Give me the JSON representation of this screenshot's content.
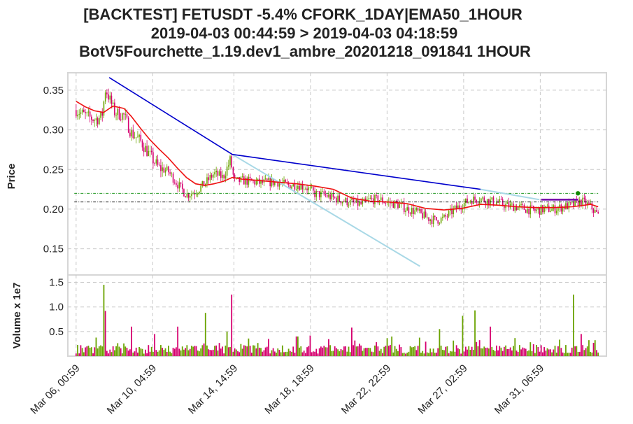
{
  "title": {
    "line1": "[BACKTEST] FETUSDT -5.4% CFORK_1DAY|EMA50_1HOUR",
    "line2": "2019-04-03 00:44:59 > 2019-04-03 04:18:59",
    "line3": "BotV5Fourchette_1.19.dev1_ambre_20201218_091841 1HOUR"
  },
  "colors": {
    "up": "#6aa300",
    "down": "#d6006f",
    "ema": "#ee1111",
    "fork_main": "#0000cc",
    "fork_light": "#a8d8e6",
    "level_upper": "#008800",
    "level_lower": "#000000",
    "target": "#7700aa",
    "marker": "#118800"
  },
  "chart_data": {
    "type": "candlestick",
    "x_unit": "days since Mar 06, 00:59",
    "x_ticks": [
      {
        "x": 0,
        "label": "Mar 06, 00:59"
      },
      {
        "x": 4.1667,
        "label": "Mar 10, 04:59"
      },
      {
        "x": 8.5833,
        "label": "Mar 14, 14:59"
      },
      {
        "x": 12.75,
        "label": "Mar 18, 18:59"
      },
      {
        "x": 16.9167,
        "label": "Mar 22, 22:59"
      },
      {
        "x": 21.0833,
        "label": "Mar 27, 02:59"
      },
      {
        "x": 25.25,
        "label": "Mar 31, 06:59"
      }
    ],
    "xlim": [
      -0.45,
      28.85
    ],
    "price_panel": {
      "ylabel": "Price",
      "ylim": [
        0.117,
        0.372
      ],
      "yticks": [
        0.15,
        0.2,
        0.25,
        0.3,
        0.35
      ],
      "ytick_labels": [
        "0.15",
        "0.20",
        "0.25",
        "0.30",
        "0.35"
      ],
      "price_path": [
        [
          0,
          0.325
        ],
        [
          0.5,
          0.318
        ],
        [
          1,
          0.313
        ],
        [
          1.4,
          0.316
        ],
        [
          1.6,
          0.352
        ],
        [
          1.8,
          0.34
        ],
        [
          2.1,
          0.322
        ],
        [
          2.6,
          0.318
        ],
        [
          3,
          0.296
        ],
        [
          3.5,
          0.286
        ],
        [
          4,
          0.268
        ],
        [
          4.5,
          0.252
        ],
        [
          5,
          0.248
        ],
        [
          5.5,
          0.232
        ],
        [
          6,
          0.218
        ],
        [
          6.5,
          0.222
        ],
        [
          7,
          0.232
        ],
        [
          7.5,
          0.245
        ],
        [
          8,
          0.24
        ],
        [
          8.4,
          0.262
        ],
        [
          8.6,
          0.235
        ],
        [
          9,
          0.236
        ],
        [
          9.5,
          0.235
        ],
        [
          10,
          0.233
        ],
        [
          10.5,
          0.234
        ],
        [
          11,
          0.234
        ],
        [
          11.5,
          0.23
        ],
        [
          12,
          0.231
        ],
        [
          12.5,
          0.228
        ],
        [
          13,
          0.219
        ],
        [
          13.5,
          0.218
        ],
        [
          14,
          0.214
        ],
        [
          14.5,
          0.211
        ],
        [
          15,
          0.208
        ],
        [
          15.5,
          0.206
        ],
        [
          16,
          0.212
        ],
        [
          16.5,
          0.212
        ],
        [
          17,
          0.208
        ],
        [
          17.5,
          0.206
        ],
        [
          18,
          0.2
        ],
        [
          18.5,
          0.197
        ],
        [
          19,
          0.19
        ],
        [
          19.5,
          0.186
        ],
        [
          20,
          0.188
        ],
        [
          20.5,
          0.198
        ],
        [
          21,
          0.206
        ],
        [
          21.5,
          0.212
        ],
        [
          22,
          0.213
        ],
        [
          22.5,
          0.21
        ],
        [
          23,
          0.208
        ],
        [
          23.5,
          0.204
        ],
        [
          24,
          0.203
        ],
        [
          24.5,
          0.2
        ],
        [
          25,
          0.198
        ],
        [
          25.5,
          0.2
        ],
        [
          26,
          0.2
        ],
        [
          26.5,
          0.203
        ],
        [
          27,
          0.205
        ],
        [
          27.5,
          0.21
        ],
        [
          28,
          0.203
        ],
        [
          28.4,
          0.192
        ]
      ],
      "ema50": [
        [
          0,
          0.336
        ],
        [
          0.5,
          0.329
        ],
        [
          1,
          0.324
        ],
        [
          1.5,
          0.322
        ],
        [
          2,
          0.33
        ],
        [
          2.6,
          0.327
        ],
        [
          3,
          0.317
        ],
        [
          3.5,
          0.302
        ],
        [
          4,
          0.288
        ],
        [
          4.5,
          0.276
        ],
        [
          5,
          0.265
        ],
        [
          5.5,
          0.252
        ],
        [
          6,
          0.24
        ],
        [
          6.5,
          0.232
        ],
        [
          7,
          0.23
        ],
        [
          7.5,
          0.232
        ],
        [
          8,
          0.235
        ],
        [
          8.5,
          0.24
        ],
        [
          9,
          0.238
        ],
        [
          10,
          0.236
        ],
        [
          11,
          0.234
        ],
        [
          12,
          0.232
        ],
        [
          13,
          0.229
        ],
        [
          14,
          0.225
        ],
        [
          15,
          0.214
        ],
        [
          16,
          0.21
        ],
        [
          17,
          0.209
        ],
        [
          18,
          0.207
        ],
        [
          19,
          0.201
        ],
        [
          20,
          0.199
        ],
        [
          21,
          0.201
        ],
        [
          22,
          0.206
        ],
        [
          23,
          0.205
        ],
        [
          24,
          0.203
        ],
        [
          25,
          0.202
        ],
        [
          26,
          0.202
        ],
        [
          27,
          0.203
        ],
        [
          28,
          0.206
        ],
        [
          28.4,
          0.203
        ]
      ],
      "fork_main": [
        [
          1.8,
          0.366
        ],
        [
          8.5,
          0.269
        ],
        [
          22,
          0.225
        ]
      ],
      "fork_light_lower": [
        [
          8.5,
          0.269
        ],
        [
          18.7,
          0.128
        ]
      ],
      "fork_light_upper": [
        [
          22,
          0.225
        ],
        [
          25.2,
          0.212
        ]
      ],
      "level_upper": 0.22,
      "level_lower": 0.209,
      "target_segment": [
        [
          25.3,
          0.212
        ],
        [
          27.3,
          0.212
        ]
      ],
      "marker": [
        27.3,
        0.22
      ],
      "level_range": [
        -0.1,
        28.4
      ]
    },
    "volume_panel": {
      "ylabel": "Volume x 1e7",
      "ylim": [
        0,
        1.65
      ],
      "yticks": [
        0.5,
        1.0,
        1.5
      ],
      "ytick_labels": [
        "0.5",
        "1.0",
        "1.5"
      ],
      "spikes": [
        [
          1.5,
          1.45,
          "up"
        ],
        [
          1.6,
          0.92,
          "down"
        ],
        [
          3,
          0.6,
          "down"
        ],
        [
          4.3,
          0.45,
          "down"
        ],
        [
          5.5,
          0.6,
          "down"
        ],
        [
          7,
          0.88,
          "up"
        ],
        [
          8.2,
          0.5,
          "up"
        ],
        [
          8.5,
          1.25,
          "down"
        ],
        [
          10.5,
          0.35,
          "down"
        ],
        [
          12,
          0.4,
          "down"
        ],
        [
          15,
          0.58,
          "down"
        ],
        [
          19.8,
          0.55,
          "up"
        ],
        [
          21,
          0.82,
          "up"
        ],
        [
          21.7,
          0.93,
          "up"
        ],
        [
          22.5,
          0.6,
          "down"
        ],
        [
          27.1,
          1.25,
          "up"
        ],
        [
          27.5,
          0.45,
          "down"
        ]
      ]
    }
  }
}
